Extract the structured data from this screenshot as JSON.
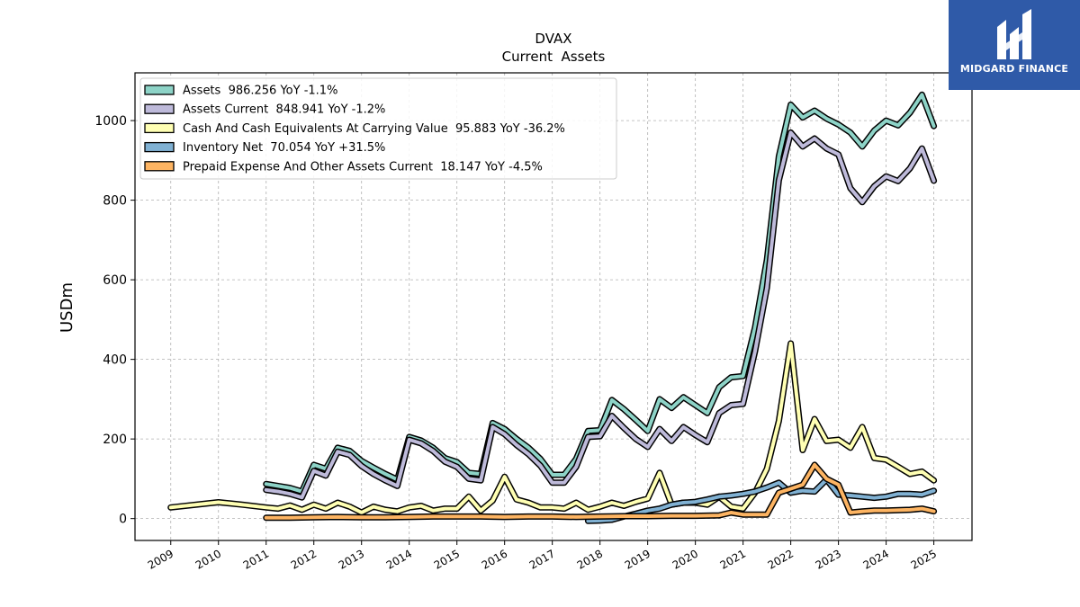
{
  "brand": {
    "name": "MIDGARD FINANCE"
  },
  "chart_data": {
    "type": "line",
    "title": "DVAX",
    "subtitle": "Current  Assets",
    "ylabel": "USDm",
    "xlim": [
      2008.25,
      2025.8
    ],
    "ylim": [
      -55,
      1120
    ],
    "yticks": [
      0,
      200,
      400,
      600,
      800,
      1000
    ],
    "xticks": [
      2009,
      2010,
      2011,
      2012,
      2013,
      2014,
      2015,
      2016,
      2017,
      2018,
      2019,
      2020,
      2021,
      2022,
      2023,
      2024,
      2025
    ],
    "grid": true,
    "legend_position": "top-left",
    "series": [
      {
        "name": "Assets",
        "legend": "Assets  986.256 YoY -1.1%",
        "color": "#8dd3c7",
        "points": [
          [
            2011.0,
            87
          ],
          [
            2011.25,
            82
          ],
          [
            2011.5,
            77
          ],
          [
            2011.75,
            68
          ],
          [
            2012.0,
            135
          ],
          [
            2012.25,
            125
          ],
          [
            2012.5,
            178
          ],
          [
            2012.75,
            170
          ],
          [
            2013.0,
            145
          ],
          [
            2013.25,
            128
          ],
          [
            2013.5,
            112
          ],
          [
            2013.75,
            98
          ],
          [
            2014.0,
            205
          ],
          [
            2014.25,
            196
          ],
          [
            2014.5,
            178
          ],
          [
            2014.75,
            152
          ],
          [
            2015.0,
            142
          ],
          [
            2015.25,
            115
          ],
          [
            2015.5,
            112
          ],
          [
            2015.75,
            240
          ],
          [
            2016.0,
            225
          ],
          [
            2016.25,
            200
          ],
          [
            2016.5,
            178
          ],
          [
            2016.75,
            150
          ],
          [
            2017.0,
            110
          ],
          [
            2017.25,
            110
          ],
          [
            2017.5,
            150
          ],
          [
            2017.75,
            220
          ],
          [
            2018.0,
            222
          ],
          [
            2018.25,
            298
          ],
          [
            2018.5,
            275
          ],
          [
            2018.75,
            248
          ],
          [
            2019.0,
            220
          ],
          [
            2019.25,
            300
          ],
          [
            2019.5,
            278
          ],
          [
            2019.75,
            305
          ],
          [
            2020.0,
            285
          ],
          [
            2020.25,
            265
          ],
          [
            2020.5,
            330
          ],
          [
            2020.75,
            355
          ],
          [
            2021.0,
            358
          ],
          [
            2021.25,
            480
          ],
          [
            2021.5,
            650
          ],
          [
            2021.75,
            910
          ],
          [
            2022.0,
            1040
          ],
          [
            2022.25,
            1008
          ],
          [
            2022.5,
            1025
          ],
          [
            2022.75,
            1005
          ],
          [
            2023.0,
            990
          ],
          [
            2023.25,
            970
          ],
          [
            2023.5,
            935
          ],
          [
            2023.75,
            975
          ],
          [
            2024.0,
            1000
          ],
          [
            2024.25,
            988
          ],
          [
            2024.5,
            1020
          ],
          [
            2024.75,
            1065
          ],
          [
            2025.0,
            986.256
          ]
        ]
      },
      {
        "name": "Assets Current",
        "legend": "Assets Current  848.941 YoY -1.2%",
        "color": "#bebada",
        "points": [
          [
            2011.0,
            72
          ],
          [
            2011.25,
            68
          ],
          [
            2011.5,
            62
          ],
          [
            2011.75,
            53
          ],
          [
            2012.0,
            120
          ],
          [
            2012.25,
            108
          ],
          [
            2012.5,
            168
          ],
          [
            2012.75,
            160
          ],
          [
            2013.0,
            132
          ],
          [
            2013.25,
            112
          ],
          [
            2013.5,
            96
          ],
          [
            2013.75,
            82
          ],
          [
            2014.0,
            198
          ],
          [
            2014.25,
            189
          ],
          [
            2014.5,
            170
          ],
          [
            2014.75,
            143
          ],
          [
            2015.0,
            130
          ],
          [
            2015.25,
            100
          ],
          [
            2015.5,
            96
          ],
          [
            2015.75,
            230
          ],
          [
            2016.0,
            212
          ],
          [
            2016.25,
            185
          ],
          [
            2016.5,
            162
          ],
          [
            2016.75,
            133
          ],
          [
            2017.0,
            90
          ],
          [
            2017.25,
            90
          ],
          [
            2017.5,
            130
          ],
          [
            2017.75,
            205
          ],
          [
            2018.0,
            207
          ],
          [
            2018.25,
            258
          ],
          [
            2018.5,
            228
          ],
          [
            2018.75,
            200
          ],
          [
            2019.0,
            180
          ],
          [
            2019.25,
            225
          ],
          [
            2019.5,
            195
          ],
          [
            2019.75,
            230
          ],
          [
            2020.0,
            210
          ],
          [
            2020.25,
            192
          ],
          [
            2020.5,
            265
          ],
          [
            2020.75,
            285
          ],
          [
            2021.0,
            288
          ],
          [
            2021.25,
            420
          ],
          [
            2021.5,
            580
          ],
          [
            2021.75,
            850
          ],
          [
            2022.0,
            970
          ],
          [
            2022.25,
            935
          ],
          [
            2022.5,
            955
          ],
          [
            2022.75,
            930
          ],
          [
            2023.0,
            915
          ],
          [
            2023.25,
            830
          ],
          [
            2023.5,
            795
          ],
          [
            2023.75,
            835
          ],
          [
            2024.0,
            860
          ],
          [
            2024.25,
            848
          ],
          [
            2024.5,
            880
          ],
          [
            2024.75,
            930
          ],
          [
            2025.0,
            848.941
          ]
        ]
      },
      {
        "name": "Cash And Cash Equivalents At Carrying Value",
        "legend": "Cash And Cash Equivalents At Carrying Value  95.883 YoY -36.2%",
        "color": "#ffffb3",
        "points": [
          [
            2009.0,
            28
          ],
          [
            2010.0,
            41
          ],
          [
            2010.5,
            35
          ],
          [
            2011.0,
            28
          ],
          [
            2011.25,
            25
          ],
          [
            2011.5,
            33
          ],
          [
            2011.75,
            22
          ],
          [
            2012.0,
            35
          ],
          [
            2012.25,
            25
          ],
          [
            2012.5,
            40
          ],
          [
            2012.75,
            30
          ],
          [
            2013.0,
            15
          ],
          [
            2013.25,
            30
          ],
          [
            2013.5,
            22
          ],
          [
            2013.75,
            18
          ],
          [
            2014.0,
            28
          ],
          [
            2014.25,
            32
          ],
          [
            2014.5,
            20
          ],
          [
            2014.75,
            25
          ],
          [
            2015.0,
            25
          ],
          [
            2015.25,
            55
          ],
          [
            2015.5,
            20
          ],
          [
            2015.75,
            45
          ],
          [
            2016.0,
            105
          ],
          [
            2016.25,
            48
          ],
          [
            2016.5,
            40
          ],
          [
            2016.75,
            28
          ],
          [
            2017.0,
            28
          ],
          [
            2017.25,
            25
          ],
          [
            2017.5,
            40
          ],
          [
            2017.75,
            22
          ],
          [
            2018.0,
            30
          ],
          [
            2018.25,
            40
          ],
          [
            2018.5,
            32
          ],
          [
            2018.75,
            42
          ],
          [
            2019.0,
            50
          ],
          [
            2019.25,
            115
          ],
          [
            2019.5,
            35
          ],
          [
            2019.75,
            40
          ],
          [
            2020.0,
            40
          ],
          [
            2020.25,
            35
          ],
          [
            2020.5,
            55
          ],
          [
            2020.75,
            30
          ],
          [
            2021.0,
            25
          ],
          [
            2021.25,
            65
          ],
          [
            2021.5,
            125
          ],
          [
            2021.75,
            245
          ],
          [
            2022.0,
            440
          ],
          [
            2022.25,
            172
          ],
          [
            2022.5,
            250
          ],
          [
            2022.75,
            195
          ],
          [
            2023.0,
            198
          ],
          [
            2023.25,
            178
          ],
          [
            2023.5,
            230
          ],
          [
            2023.75,
            152
          ],
          [
            2024.0,
            148
          ],
          [
            2024.25,
            130
          ],
          [
            2024.5,
            112
          ],
          [
            2024.75,
            118
          ],
          [
            2025.0,
            95.883
          ]
        ]
      },
      {
        "name": "Inventory Net",
        "legend": "Inventory Net  70.054 YoY +31.5%",
        "color": "#80b1d3",
        "points": [
          [
            2017.75,
            -6
          ],
          [
            2018.0,
            -5
          ],
          [
            2018.25,
            -3
          ],
          [
            2018.5,
            5
          ],
          [
            2018.75,
            12
          ],
          [
            2019.0,
            20
          ],
          [
            2019.25,
            25
          ],
          [
            2019.5,
            35
          ],
          [
            2019.75,
            40
          ],
          [
            2020.0,
            42
          ],
          [
            2020.25,
            48
          ],
          [
            2020.5,
            55
          ],
          [
            2020.75,
            58
          ],
          [
            2021.0,
            62
          ],
          [
            2021.25,
            68
          ],
          [
            2021.5,
            78
          ],
          [
            2021.75,
            90
          ],
          [
            2022.0,
            65
          ],
          [
            2022.25,
            70
          ],
          [
            2022.5,
            68
          ],
          [
            2022.75,
            98
          ],
          [
            2023.0,
            60
          ],
          [
            2023.25,
            58
          ],
          [
            2023.5,
            55
          ],
          [
            2023.75,
            52
          ],
          [
            2024.0,
            55
          ],
          [
            2024.25,
            62
          ],
          [
            2024.5,
            62
          ],
          [
            2024.75,
            60
          ],
          [
            2025.0,
            70.054
          ]
        ]
      },
      {
        "name": "Prepaid Expense And Other Assets Current",
        "legend": "Prepaid Expense And Other Assets Current  18.147 YoY -4.5%",
        "color": "#fdb462",
        "points": [
          [
            2011.0,
            2
          ],
          [
            2011.5,
            2
          ],
          [
            2012.0,
            3
          ],
          [
            2012.5,
            4
          ],
          [
            2013.0,
            3
          ],
          [
            2013.5,
            3
          ],
          [
            2014.0,
            4
          ],
          [
            2014.5,
            5
          ],
          [
            2015.0,
            5
          ],
          [
            2015.5,
            5
          ],
          [
            2016.0,
            4
          ],
          [
            2016.5,
            5
          ],
          [
            2017.0,
            5
          ],
          [
            2017.5,
            4
          ],
          [
            2018.0,
            5
          ],
          [
            2018.5,
            6
          ],
          [
            2019.0,
            6
          ],
          [
            2019.5,
            7
          ],
          [
            2020.0,
            7
          ],
          [
            2020.5,
            8
          ],
          [
            2020.75,
            15
          ],
          [
            2021.0,
            10
          ],
          [
            2021.5,
            10
          ],
          [
            2021.75,
            65
          ],
          [
            2022.0,
            75
          ],
          [
            2022.25,
            85
          ],
          [
            2022.5,
            135
          ],
          [
            2022.75,
            100
          ],
          [
            2023.0,
            85
          ],
          [
            2023.25,
            15
          ],
          [
            2023.5,
            18
          ],
          [
            2023.75,
            20
          ],
          [
            2024.0,
            20
          ],
          [
            2024.5,
            22
          ],
          [
            2024.75,
            25
          ],
          [
            2025.0,
            18.147
          ]
        ]
      }
    ]
  }
}
